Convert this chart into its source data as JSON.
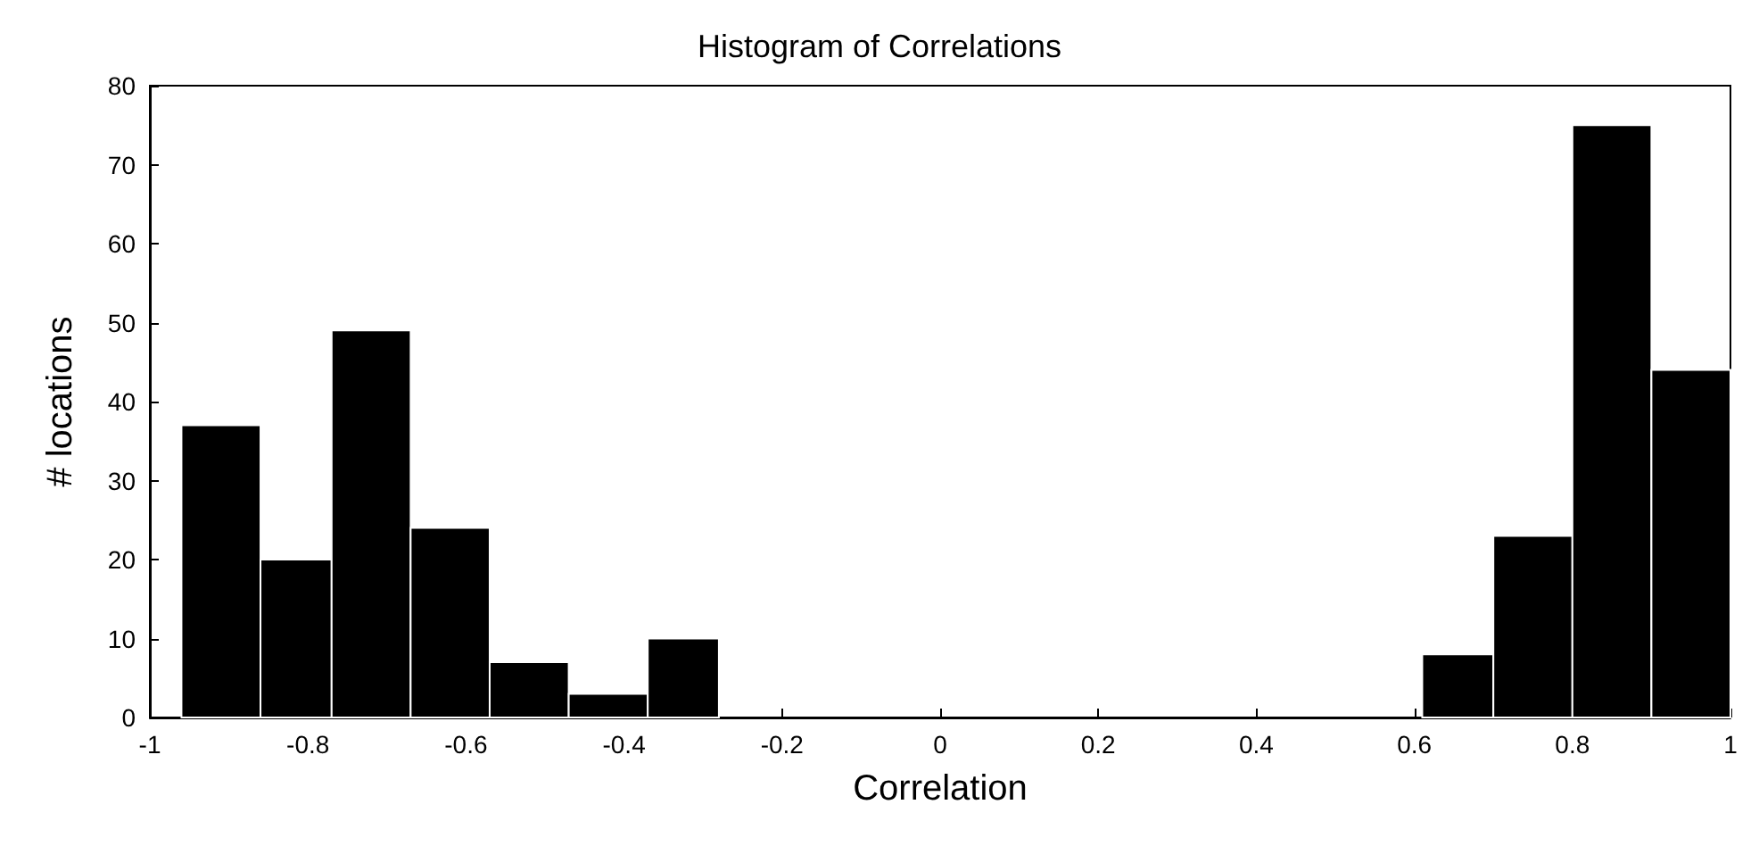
{
  "chart_data": {
    "type": "histogram",
    "title": "Histogram of Correlations",
    "xlabel": "Correlation",
    "ylabel": "# locations",
    "bins": [
      -0.96,
      -0.86,
      -0.77,
      -0.67,
      -0.57,
      -0.47,
      -0.37,
      -0.28,
      0.61,
      0.7,
      0.8,
      0.9,
      1.0
    ],
    "values": [
      37,
      20,
      49,
      24,
      7,
      3,
      10,
      0,
      8,
      23,
      75,
      44
    ],
    "color": "#000000",
    "xlim": [
      -1,
      1
    ],
    "xticks": [
      -1,
      -0.8,
      -0.6,
      -0.4,
      -0.2,
      0,
      0.2,
      0.4,
      0.6,
      0.8,
      1
    ],
    "ylim": [
      0,
      80
    ],
    "yticks": [
      0,
      10,
      20,
      30,
      40,
      50,
      60,
      70,
      80
    ],
    "grid": false
  }
}
